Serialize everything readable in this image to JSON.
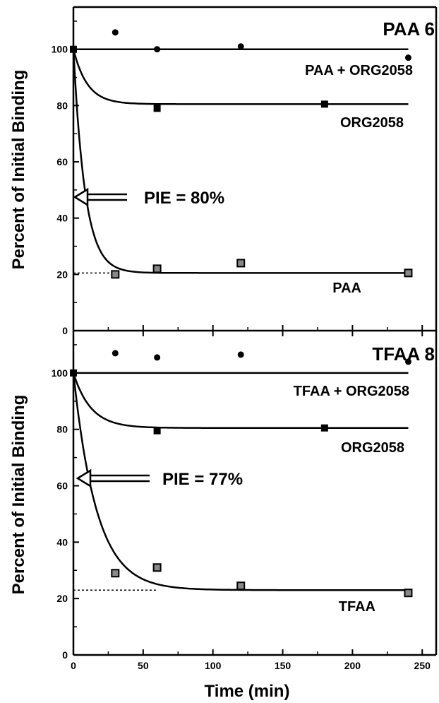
{
  "chart_data": [
    {
      "type": "scatter",
      "title": "PAA 6",
      "ylabel": "Percent of Initial Binding",
      "xlabel": "",
      "xlim": [
        0,
        260
      ],
      "ylim": [
        0,
        115
      ],
      "y_ticks": [
        0,
        20,
        40,
        60,
        80,
        100
      ],
      "x_ticks": [
        0,
        50,
        100,
        150,
        200,
        250
      ],
      "grid": false,
      "series": [
        {
          "name": "PAA + ORG2058",
          "marker": "circle",
          "x": [
            0,
            30,
            60,
            120,
            240
          ],
          "y": [
            100,
            106,
            100,
            101,
            97
          ],
          "fit": {
            "kind": "flat",
            "level": 100
          }
        },
        {
          "name": "ORG2058",
          "marker": "filled-square",
          "x": [
            60,
            180
          ],
          "y": [
            79,
            80.5
          ],
          "fit": {
            "kind": "exp",
            "start": 100,
            "plateau": 80.5,
            "rate": 0.1
          }
        },
        {
          "name": "PAA",
          "marker": "open-square",
          "x": [
            30,
            60,
            120,
            240
          ],
          "y": [
            20,
            22,
            24,
            20.5
          ],
          "fit": {
            "kind": "exp",
            "start": 100,
            "plateau": 20.5,
            "rate": 0.12
          }
        }
      ],
      "dashed_reference": {
        "y": 20.5,
        "x_to": 30
      },
      "annotation": {
        "text": "PIE = 80%",
        "y": 47
      }
    },
    {
      "type": "scatter",
      "title": "TFAA 8",
      "ylabel": "Percent of Initial Binding",
      "xlabel": "Time (min)",
      "xlim": [
        0,
        260
      ],
      "ylim": [
        0,
        115
      ],
      "y_ticks": [
        0,
        20,
        40,
        60,
        80,
        100
      ],
      "x_ticks": [
        0,
        50,
        100,
        150,
        200,
        250
      ],
      "x_tick_labels": [
        "0",
        "50",
        "100",
        "150",
        "200",
        "250"
      ],
      "grid": false,
      "series": [
        {
          "name": "TFAA + ORG2058",
          "marker": "circle",
          "x": [
            0,
            30,
            60,
            120,
            240
          ],
          "y": [
            100,
            107,
            105.5,
            106.5,
            104
          ],
          "fit": {
            "kind": "flat",
            "level": 100
          }
        },
        {
          "name": "ORG2058",
          "marker": "filled-square",
          "x": [
            60,
            180
          ],
          "y": [
            79.5,
            80.5
          ],
          "fit": {
            "kind": "exp",
            "start": 100,
            "plateau": 80.5,
            "rate": 0.08
          }
        },
        {
          "name": "TFAA",
          "marker": "open-square",
          "x": [
            30,
            60,
            120,
            240
          ],
          "y": [
            29,
            31,
            24.5,
            22
          ],
          "fit": {
            "kind": "exp",
            "start": 100,
            "plateau": 23,
            "rate": 0.06
          }
        }
      ],
      "dashed_reference": {
        "y": 23,
        "x_to": 60
      },
      "annotation": {
        "text": "PIE = 77%",
        "y": 55
      }
    }
  ]
}
